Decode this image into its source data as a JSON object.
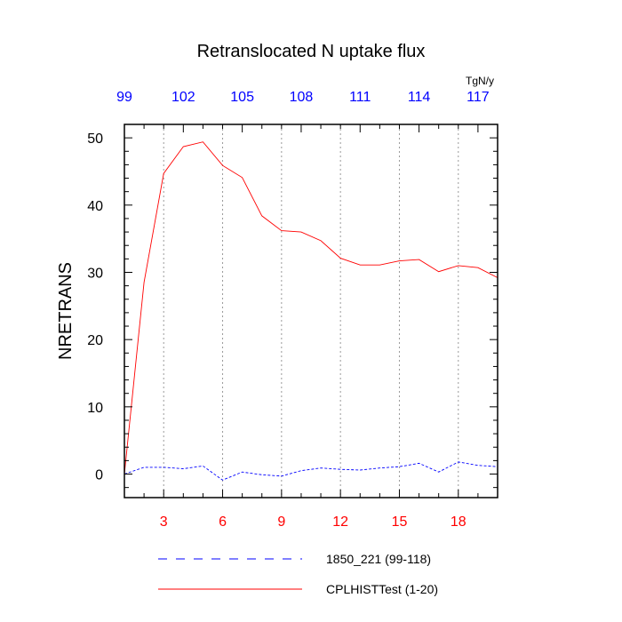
{
  "chart_data": {
    "type": "line",
    "title": "Retranslocated N uptake flux",
    "ylabel": "NRETRANS",
    "units": "TgN/y",
    "xlim": [
      1,
      20
    ],
    "ylim": [
      -3.5,
      52
    ],
    "bottom_axis": {
      "ticks": [
        3,
        6,
        9,
        12,
        15,
        18
      ],
      "labels": [
        "3",
        "6",
        "9",
        "12",
        "15",
        "18"
      ],
      "color": "#ff0000"
    },
    "top_axis": {
      "ticks": [
        1,
        4,
        7,
        10,
        13,
        16,
        19
      ],
      "labels": [
        "99",
        "102",
        "105",
        "108",
        "111",
        "114",
        "117"
      ],
      "color": "#0000ff"
    },
    "left_axis": {
      "ticks": [
        0,
        10,
        20,
        30,
        40,
        50
      ],
      "labels": [
        "0",
        "10",
        "20",
        "30",
        "40",
        "50"
      ]
    },
    "x": [
      1,
      2,
      3,
      4,
      5,
      6,
      7,
      8,
      9,
      10,
      11,
      12,
      13,
      14,
      15,
      16,
      17,
      18,
      19,
      20
    ],
    "series": [
      {
        "name": "CPLHISTTest (1-20)",
        "color": "#ff0000",
        "dash": "solid",
        "values": [
          0.0,
          28.5,
          44.7,
          48.7,
          49.4,
          45.9,
          44.1,
          38.4,
          36.2,
          36.0,
          34.7,
          32.1,
          31.1,
          31.1,
          31.7,
          31.9,
          30.1,
          31.0,
          30.7,
          29.2
        ]
      },
      {
        "name": "1850_221 (99-118)",
        "color": "#0000ff",
        "dash": "dashed",
        "values": [
          0.0,
          1.0,
          1.0,
          0.8,
          1.2,
          -0.9,
          0.3,
          -0.1,
          -0.3,
          0.5,
          0.9,
          0.7,
          0.6,
          0.9,
          1.1,
          1.6,
          0.3,
          1.8,
          1.3,
          1.1
        ]
      }
    ],
    "legend": {
      "position": "bottom",
      "order": [
        "1850_221 (99-118)",
        "CPLHISTTest (1-20)"
      ]
    },
    "grid": "vertical dashed at bottom ticks"
  }
}
